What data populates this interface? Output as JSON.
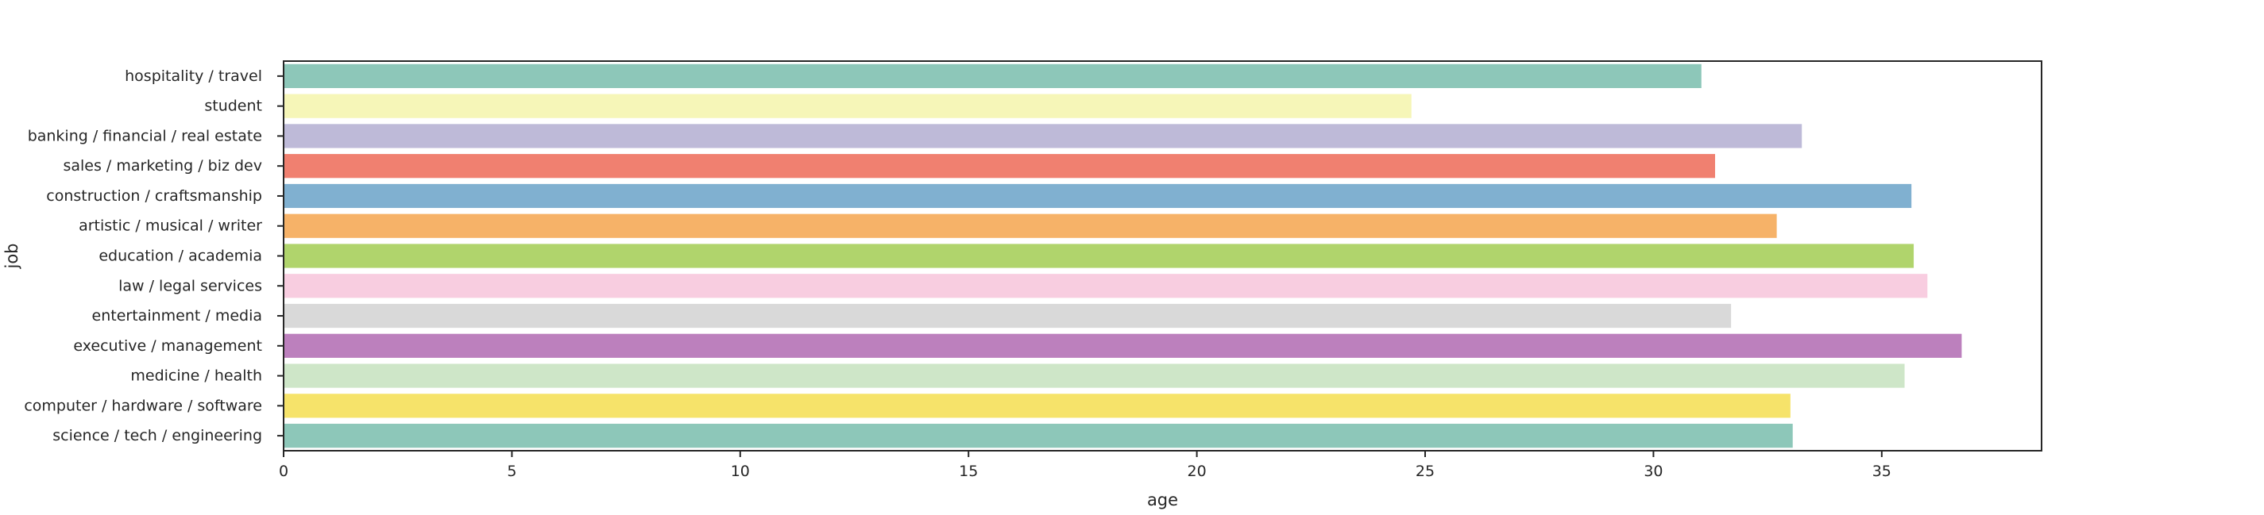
{
  "chart_data": {
    "type": "bar",
    "orientation": "horizontal",
    "xlabel": "age",
    "ylabel": "job",
    "xlim": [
      0,
      38.5
    ],
    "xticks": [
      0,
      5,
      10,
      15,
      20,
      25,
      30,
      35
    ],
    "grid": false,
    "categories": [
      "hospitality / travel",
      "student",
      "banking / financial / real estate",
      "sales / marketing / biz dev",
      "construction / craftsmanship",
      "artistic / musical / writer",
      "education / academia",
      "law / legal services",
      "entertainment / media",
      "executive / management",
      "medicine / health",
      "computer / hardware / software",
      "science / tech / engineering"
    ],
    "values": [
      31.05,
      24.7,
      33.25,
      31.35,
      35.65,
      32.7,
      35.7,
      36.0,
      31.7,
      36.75,
      35.5,
      33.0,
      33.05
    ],
    "colors": [
      "#8dc7b9",
      "#f6f6b8",
      "#bebad8",
      "#f08070",
      "#80b0d0",
      "#f6b268",
      "#b0d46c",
      "#f8cde0",
      "#d9d9d9",
      "#bc80bd",
      "#cee6c8",
      "#f6e36a",
      "#8dc7b9"
    ]
  }
}
